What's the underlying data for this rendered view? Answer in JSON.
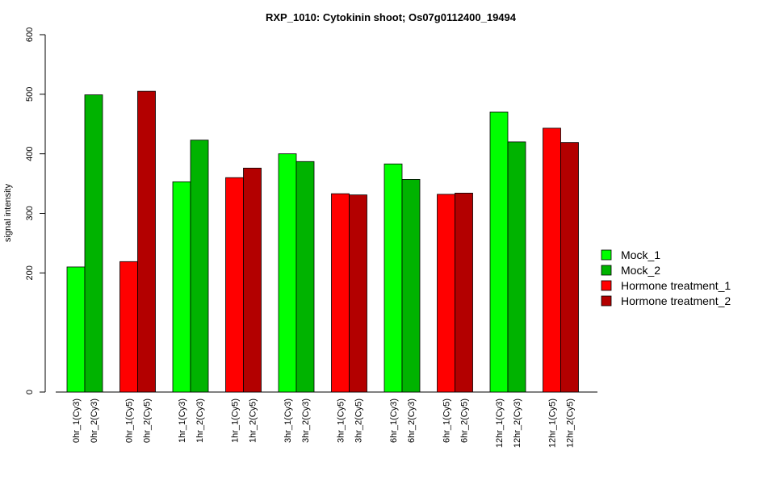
{
  "chart_data": {
    "type": "bar",
    "title": "RXP_1010: Cytokinin shoot; Os07g0112400_19494",
    "xlabel": "",
    "ylabel": "signal intensity",
    "ylim": [
      0,
      600
    ],
    "y_ticks": [
      0,
      200,
      300,
      400,
      500,
      600
    ],
    "bars": [
      {
        "label": "0hr_1(Cy3)",
        "value": 210,
        "series": "Mock_1"
      },
      {
        "label": "0hr_2(Cy3)",
        "value": 499,
        "series": "Mock_2"
      },
      {
        "label": "0hr_1(Cy5)",
        "value": 219,
        "series": "Hormone treatment_1"
      },
      {
        "label": "0hr_2(Cy5)",
        "value": 505,
        "series": "Hormone treatment_2"
      },
      {
        "label": "1hr_1(Cy3)",
        "value": 353,
        "series": "Mock_1"
      },
      {
        "label": "1hr_2(Cy3)",
        "value": 423,
        "series": "Mock_2"
      },
      {
        "label": "1hr_1(Cy5)",
        "value": 360,
        "series": "Hormone treatment_1"
      },
      {
        "label": "1hr_2(Cy5)",
        "value": 376,
        "series": "Hormone treatment_2"
      },
      {
        "label": "3hr_1(Cy3)",
        "value": 400,
        "series": "Mock_1"
      },
      {
        "label": "3hr_2(Cy3)",
        "value": 387,
        "series": "Mock_2"
      },
      {
        "label": "3hr_1(Cy5)",
        "value": 333,
        "series": "Hormone treatment_1"
      },
      {
        "label": "3hr_2(Cy5)",
        "value": 331,
        "series": "Hormone treatment_2"
      },
      {
        "label": "6hr_1(Cy3)",
        "value": 383,
        "series": "Mock_1"
      },
      {
        "label": "6hr_2(Cy3)",
        "value": 357,
        "series": "Mock_2"
      },
      {
        "label": "6hr_1(Cy5)",
        "value": 332,
        "series": "Hormone treatment_1"
      },
      {
        "label": "6hr_2(Cy5)",
        "value": 334,
        "series": "Hormone treatment_2"
      },
      {
        "label": "12hr_1(Cy3)",
        "value": 470,
        "series": "Mock_1"
      },
      {
        "label": "12hr_2(Cy3)",
        "value": 420,
        "series": "Mock_2"
      },
      {
        "label": "12hr_1(Cy5)",
        "value": 443,
        "series": "Hormone treatment_1"
      },
      {
        "label": "12hr_2(Cy5)",
        "value": 419,
        "series": "Hormone treatment_2"
      }
    ],
    "legend": {
      "position": "right",
      "entries": [
        {
          "name": "Mock_1",
          "color": "#00ff00"
        },
        {
          "name": "Mock_2",
          "color": "#00b300"
        },
        {
          "name": "Hormone treatment_1",
          "color": "#ff0000"
        },
        {
          "name": "Hormone treatment_2",
          "color": "#b30000"
        }
      ]
    },
    "grid": false
  }
}
